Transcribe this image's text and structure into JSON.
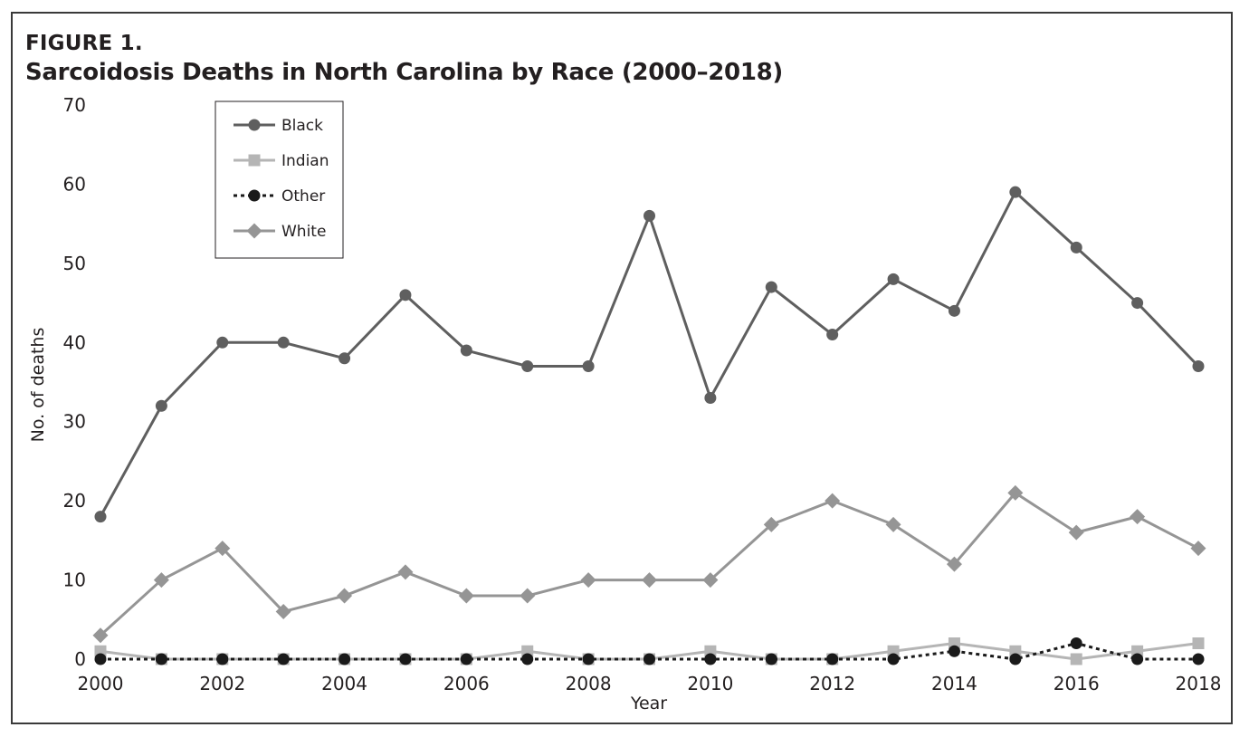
{
  "figure": {
    "label": "FIGURE 1.",
    "title": "Sarcoidosis Deaths in North Carolina by Race (2000–2018)"
  },
  "chart_data": {
    "type": "line",
    "title": "Sarcoidosis Deaths in North Carolina by Race (2000–2018)",
    "xlabel": "Year",
    "ylabel": "No. of deaths",
    "ylim": [
      0,
      70
    ],
    "yticks": [
      0,
      10,
      20,
      30,
      40,
      50,
      60,
      70
    ],
    "xlim": [
      2000,
      2018
    ],
    "xticks": [
      2000,
      2002,
      2004,
      2006,
      2008,
      2010,
      2012,
      2014,
      2016,
      2018
    ],
    "grid": false,
    "legend_position": "top-left",
    "x": [
      2000,
      2001,
      2002,
      2003,
      2004,
      2005,
      2006,
      2007,
      2008,
      2009,
      2010,
      2011,
      2012,
      2013,
      2014,
      2015,
      2016,
      2017,
      2018
    ],
    "series": [
      {
        "name": "Black",
        "color": "#5f5f5f",
        "marker": "circle",
        "dash": "solid",
        "values": [
          18,
          32,
          40,
          40,
          38,
          46,
          39,
          37,
          37,
          56,
          33,
          47,
          41,
          48,
          44,
          59,
          52,
          45,
          37
        ]
      },
      {
        "name": "Indian",
        "color": "#b5b5b5",
        "marker": "square",
        "dash": "solid",
        "values": [
          1,
          0,
          0,
          0,
          0,
          0,
          0,
          1,
          0,
          0,
          1,
          0,
          0,
          1,
          2,
          1,
          0,
          1,
          2
        ]
      },
      {
        "name": "Other",
        "color": "#1a1a1a",
        "marker": "circle",
        "dash": "dotted",
        "values": [
          0,
          0,
          0,
          0,
          0,
          0,
          0,
          0,
          0,
          0,
          0,
          0,
          0,
          0,
          1,
          0,
          2,
          0,
          0
        ]
      },
      {
        "name": "White",
        "color": "#959595",
        "marker": "diamond",
        "dash": "solid",
        "values": [
          3,
          10,
          14,
          6,
          8,
          11,
          8,
          8,
          10,
          10,
          10,
          17,
          20,
          17,
          12,
          21,
          16,
          18,
          14
        ]
      }
    ]
  }
}
